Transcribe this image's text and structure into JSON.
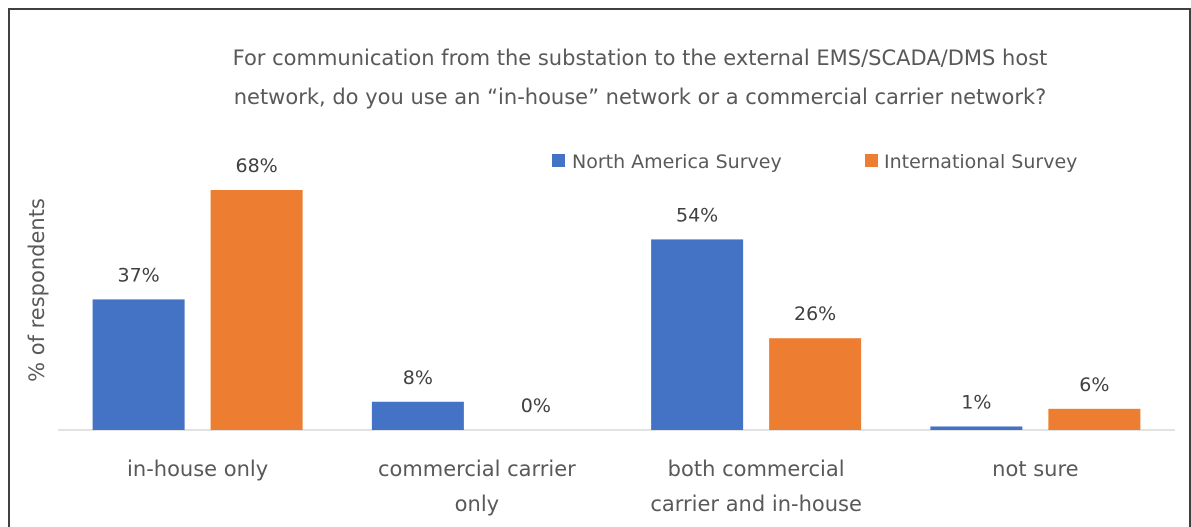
{
  "chart_data": {
    "type": "bar",
    "title": [
      "For communication from the substation to the external EMS/SCADA/DMS host",
      "network, do you use an “in-house” network or a commercial carrier network?"
    ],
    "ylabel": "% of respondents",
    "xlabel": "",
    "categories": [
      [
        "in-house only"
      ],
      [
        "commercial carrier",
        "only"
      ],
      [
        "both commercial",
        "carrier and in-house"
      ],
      [
        "not sure"
      ]
    ],
    "series": [
      {
        "name": "North America Survey",
        "color": "#4472C4",
        "values": [
          37,
          8,
          54,
          1
        ],
        "labels": [
          "37%",
          "8%",
          "54%",
          "1%"
        ]
      },
      {
        "name": "International Survey",
        "color": "#ED7D31",
        "values": [
          68,
          0,
          26,
          6
        ],
        "labels": [
          "68%",
          "0%",
          "26%",
          "6%"
        ]
      }
    ],
    "ylim": [
      0,
      70
    ],
    "grid": false,
    "legend_position": "top-right"
  }
}
